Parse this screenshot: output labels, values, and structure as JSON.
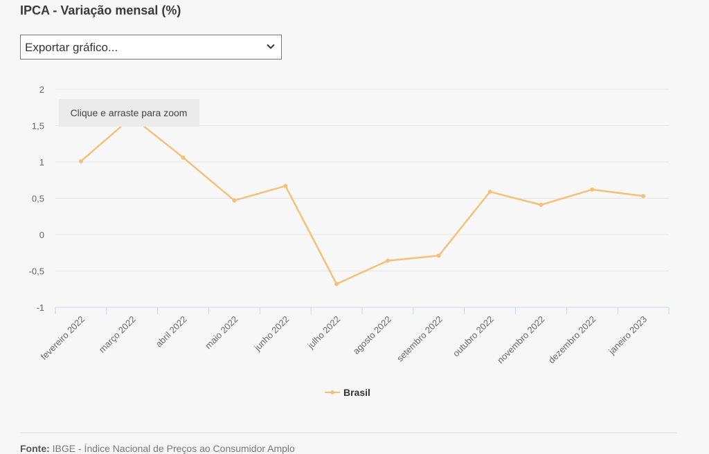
{
  "title": "IPCA - Variação mensal (%)",
  "export_select": {
    "value": "Exportar gráfico...",
    "icon": "chevron-down-icon"
  },
  "zoom_hint": "Clique e arraste para zoom",
  "source": {
    "label": "Fonte:",
    "text": "IBGE - Índice Nacional de Preços ao Consumidor Amplo"
  },
  "colors": {
    "series": "#f5c07a",
    "grid": "#e6e6e6",
    "axis": "#ccd6eb"
  },
  "chart_data": {
    "type": "line",
    "categories": [
      "fevereiro 2022",
      "março 2022",
      "abril 2022",
      "maio 2022",
      "junho 2022",
      "julho 2022",
      "agosto 2022",
      "setembro 2022",
      "outubro 2022",
      "novembro 2022",
      "dezembro 2022",
      "janeiro 2023"
    ],
    "series": [
      {
        "name": "Brasil",
        "values": [
          1.01,
          1.62,
          1.06,
          0.47,
          0.67,
          -0.68,
          -0.36,
          -0.29,
          0.59,
          0.41,
          0.62,
          0.53
        ]
      }
    ],
    "yticks": [
      2,
      1.5,
      1,
      0.5,
      0,
      -0.5,
      -1
    ],
    "ytick_labels": [
      "2",
      "1,5",
      "1",
      "0,5",
      "0",
      "-0,5",
      "-1"
    ],
    "ylim": [
      -1,
      2
    ],
    "grid": true,
    "legend": "bottom-center"
  }
}
